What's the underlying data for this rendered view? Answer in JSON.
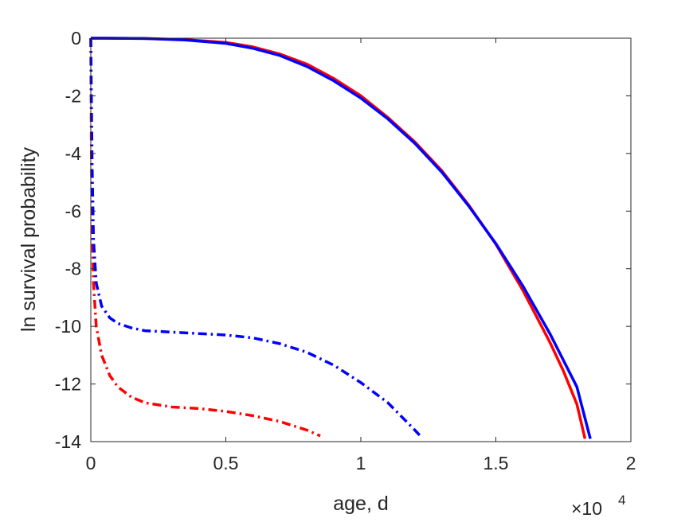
{
  "chart_data": {
    "type": "line",
    "title": "",
    "xlabel": "age, d",
    "ylabel": "ln survival probability",
    "x_exponent_label": "×10",
    "x_exponent_power": "4",
    "xlim": [
      0,
      2
    ],
    "ylim": [
      -14,
      0
    ],
    "x_unit_multiplier": 10000,
    "xticks": [
      0,
      0.5,
      1,
      1.5,
      2
    ],
    "xtick_labels": [
      "0",
      "0.5",
      "1",
      "1.5",
      "2"
    ],
    "yticks": [
      0,
      -2,
      -4,
      -6,
      -8,
      -10,
      -12,
      -14
    ],
    "ytick_labels": [
      "0",
      "-2",
      "-4",
      "-6",
      "-8",
      "-10",
      "-12",
      "-14"
    ],
    "grid": false,
    "box": true,
    "series": [
      {
        "color": "#ff0000",
        "style": "solid",
        "x": [
          0.0,
          0.05,
          0.2,
          0.35,
          0.5,
          0.6,
          0.7,
          0.8,
          0.9,
          1.0,
          1.1,
          1.2,
          1.3,
          1.4,
          1.5,
          1.6,
          1.7,
          1.75,
          1.8,
          1.83
        ],
        "y": [
          0.0,
          0.0,
          -0.01,
          -0.05,
          -0.15,
          -0.3,
          -0.55,
          -0.9,
          -1.4,
          -2.0,
          -2.75,
          -3.6,
          -4.6,
          -5.8,
          -7.15,
          -8.75,
          -10.55,
          -11.55,
          -12.7,
          -13.9
        ]
      },
      {
        "color": "#0000ff",
        "style": "solid",
        "x": [
          0.0,
          0.05,
          0.2,
          0.35,
          0.5,
          0.6,
          0.7,
          0.8,
          0.9,
          1.0,
          1.1,
          1.2,
          1.3,
          1.4,
          1.5,
          1.6,
          1.7,
          1.8,
          1.85
        ],
        "y": [
          0.0,
          0.0,
          -0.01,
          -0.06,
          -0.18,
          -0.35,
          -0.6,
          -0.98,
          -1.48,
          -2.08,
          -2.8,
          -3.65,
          -4.65,
          -5.83,
          -7.13,
          -8.6,
          -10.25,
          -12.1,
          -13.9
        ]
      },
      {
        "color": "#ff0000",
        "style": "dashdot",
        "x": [
          0.0,
          0.002,
          0.005,
          0.01,
          0.02,
          0.04,
          0.07,
          0.1,
          0.15,
          0.2,
          0.3,
          0.4,
          0.5,
          0.6,
          0.7,
          0.8,
          0.85
        ],
        "y": [
          0.0,
          -4.0,
          -6.5,
          -8.5,
          -10.0,
          -11.0,
          -11.7,
          -12.1,
          -12.45,
          -12.65,
          -12.8,
          -12.85,
          -12.95,
          -13.1,
          -13.3,
          -13.6,
          -13.8
        ]
      },
      {
        "color": "#0000ff",
        "style": "dashdot",
        "x": [
          0.0,
          0.002,
          0.005,
          0.01,
          0.02,
          0.04,
          0.07,
          0.1,
          0.15,
          0.2,
          0.3,
          0.4,
          0.5,
          0.6,
          0.7,
          0.8,
          0.9,
          1.0,
          1.1,
          1.2,
          1.22
        ],
        "y": [
          0.0,
          -2.0,
          -4.5,
          -7.0,
          -8.5,
          -9.3,
          -9.7,
          -9.9,
          -10.05,
          -10.15,
          -10.2,
          -10.25,
          -10.3,
          -10.4,
          -10.6,
          -10.9,
          -11.35,
          -11.95,
          -12.65,
          -13.6,
          -13.8
        ]
      }
    ]
  }
}
